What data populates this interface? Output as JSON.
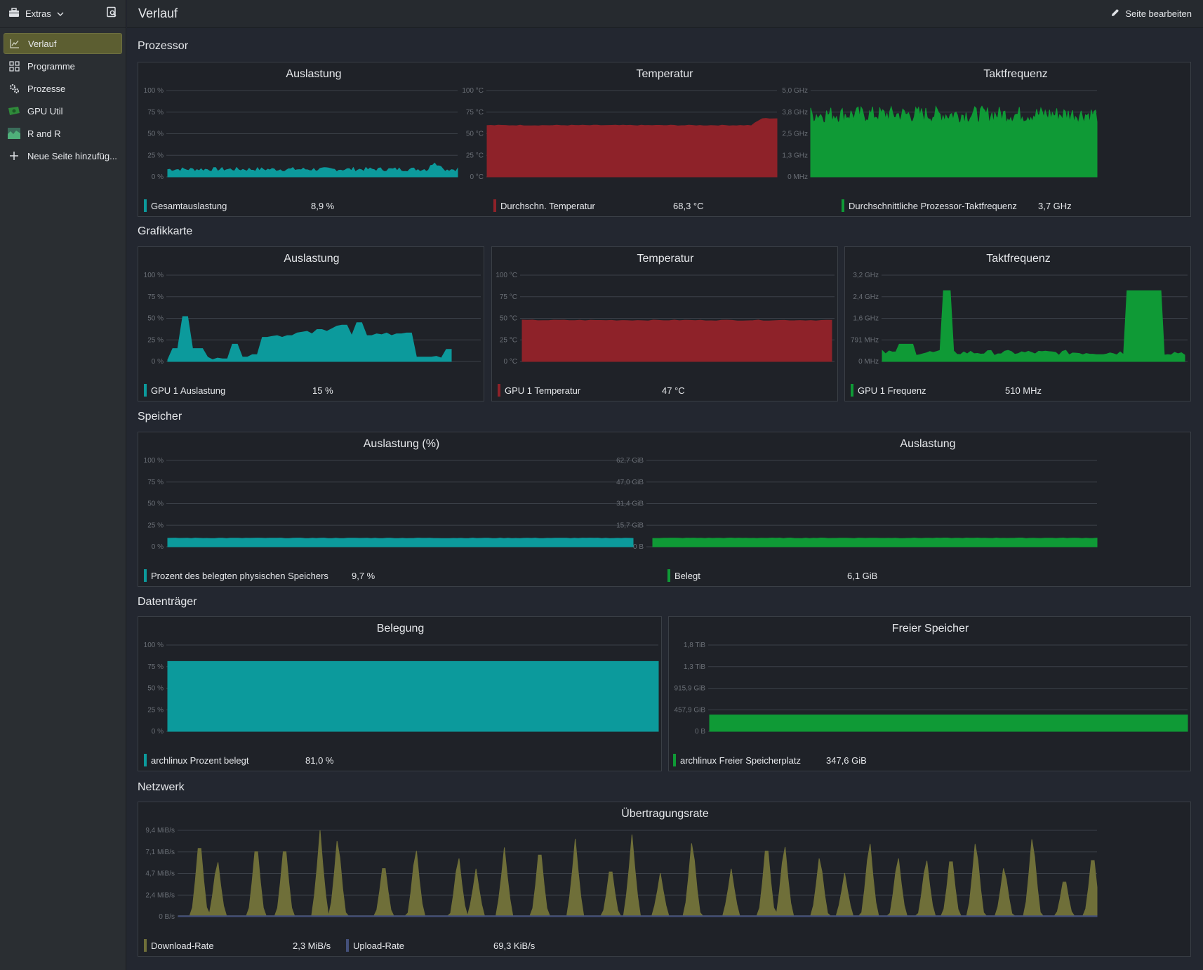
{
  "sidebar": {
    "app_label": "Extras",
    "items": [
      {
        "label": "Verlauf",
        "icon": "chart-line-icon",
        "active": true
      },
      {
        "label": "Programme",
        "icon": "grid-icon"
      },
      {
        "label": "Prozesse",
        "icon": "gears-icon"
      },
      {
        "label": "GPU Util",
        "icon": "gpu-card-icon"
      },
      {
        "label": "R and R",
        "icon": "area-chart-icon"
      },
      {
        "label": "Neue Seite hinzufüg...",
        "icon": "plus-icon"
      }
    ]
  },
  "header": {
    "title": "Verlauf",
    "edit_label": "Seite bearbeiten"
  },
  "colors": {
    "cyan": "#0c9a9c",
    "red": "#8e2229",
    "green": "#0f9a36",
    "olive": "#6f6f39",
    "upload": "#44507a"
  },
  "sections": [
    {
      "title": "Prozessor"
    },
    {
      "title": "Grafikkarte"
    },
    {
      "title": "Speicher"
    },
    {
      "title": "Datenträger"
    },
    {
      "title": "Netzwerk"
    }
  ],
  "charts": {
    "cpu_load": {
      "title": "Auslastung",
      "chart_data": {
        "type": "area",
        "yticks": [
          "100 %",
          "75 %",
          "50 %",
          "25 %",
          "0 %"
        ],
        "ylim": [
          0,
          100
        ],
        "series": [
          {
            "name": "Gesamtauslastung",
            "current": "8,9 %"
          }
        ]
      }
    },
    "cpu_temp": {
      "title": "Temperatur",
      "chart_data": {
        "type": "area",
        "yticks": [
          "100 °C",
          "75 °C",
          "50 °C",
          "25 °C",
          "0 °C"
        ],
        "ylim": [
          0,
          100
        ],
        "series": [
          {
            "name": "Durchschn. Temperatur",
            "current": "68,3 °C"
          }
        ]
      }
    },
    "cpu_freq": {
      "title": "Taktfrequenz",
      "chart_data": {
        "type": "area",
        "yticks": [
          "5,0 GHz",
          "3,8 GHz",
          "2,5 GHz",
          "1,3 GHz",
          "0 MHz"
        ],
        "ylim": [
          0,
          5.0
        ],
        "series": [
          {
            "name": "Durchschnittliche Prozessor-Taktfrequenz",
            "current": "3,7 GHz"
          }
        ]
      }
    },
    "gpu_load": {
      "title": "Auslastung",
      "chart_data": {
        "type": "area",
        "yticks": [
          "100 %",
          "75 %",
          "50 %",
          "25 %",
          "0 %"
        ],
        "ylim": [
          0,
          100
        ],
        "series": [
          {
            "name": "GPU 1 Auslastung",
            "current": "15 %"
          }
        ]
      }
    },
    "gpu_temp": {
      "title": "Temperatur",
      "chart_data": {
        "type": "area",
        "yticks": [
          "100 °C",
          "75 °C",
          "50 °C",
          "25 °C",
          "0 °C"
        ],
        "ylim": [
          0,
          100
        ],
        "series": [
          {
            "name": "GPU 1 Temperatur",
            "current": "47 °C"
          }
        ]
      }
    },
    "gpu_freq": {
      "title": "Taktfrequenz",
      "chart_data": {
        "type": "area",
        "yticks": [
          "3,2 GHz",
          "2,4 GHz",
          "1,6 GHz",
          "791 MHz",
          "0 MHz"
        ],
        "ylim": [
          0,
          3.2
        ],
        "series": [
          {
            "name": "GPU 1 Frequenz",
            "current": "510 MHz"
          }
        ]
      }
    },
    "mem_pct": {
      "title": "Auslastung (%)",
      "chart_data": {
        "type": "area",
        "yticks": [
          "100 %",
          "75 %",
          "50 %",
          "25 %",
          "0 %"
        ],
        "ylim": [
          0,
          100
        ],
        "series": [
          {
            "name": "Prozent des belegten physischen Speichers",
            "current": "9,7 %"
          }
        ]
      }
    },
    "mem_abs": {
      "title": "Auslastung",
      "chart_data": {
        "type": "area",
        "yticks": [
          "62,7 GiB",
          "47,0 GiB",
          "31,4 GiB",
          "15,7 GiB",
          "0 B"
        ],
        "ylim": [
          0,
          62.7
        ],
        "series": [
          {
            "name": "Belegt",
            "current": "6,1 GiB"
          }
        ]
      }
    },
    "disk_pct": {
      "title": "Belegung",
      "chart_data": {
        "type": "area",
        "yticks": [
          "100 %",
          "75 %",
          "50 %",
          "25 %",
          "0 %"
        ],
        "ylim": [
          0,
          100
        ],
        "series": [
          {
            "name": "archlinux Prozent belegt",
            "current": "81,0 %"
          }
        ]
      }
    },
    "disk_free": {
      "title": "Freier Speicher",
      "chart_data": {
        "type": "area",
        "yticks": [
          "1,8 TiB",
          "1,3 TiB",
          "915,9 GiB",
          "457,9 GiB",
          "0 B"
        ],
        "ylim": [
          0,
          1.8
        ],
        "series": [
          {
            "name": "archlinux Freier Speicherplatz",
            "current": "347,6 GiB"
          }
        ]
      }
    },
    "net": {
      "title": "Übertragungsrate",
      "chart_data": {
        "type": "area",
        "yticks": [
          "9,4 MiB/s",
          "7,1 MiB/s",
          "4,7 MiB/s",
          "2,4 MiB/s",
          "0 B/s"
        ],
        "ylim": [
          0,
          9.4
        ],
        "series": [
          {
            "name": "Download-Rate",
            "current": "2,3 MiB/s"
          },
          {
            "name": "Upload-Rate",
            "current": "69,3 KiB/s"
          }
        ]
      }
    }
  }
}
